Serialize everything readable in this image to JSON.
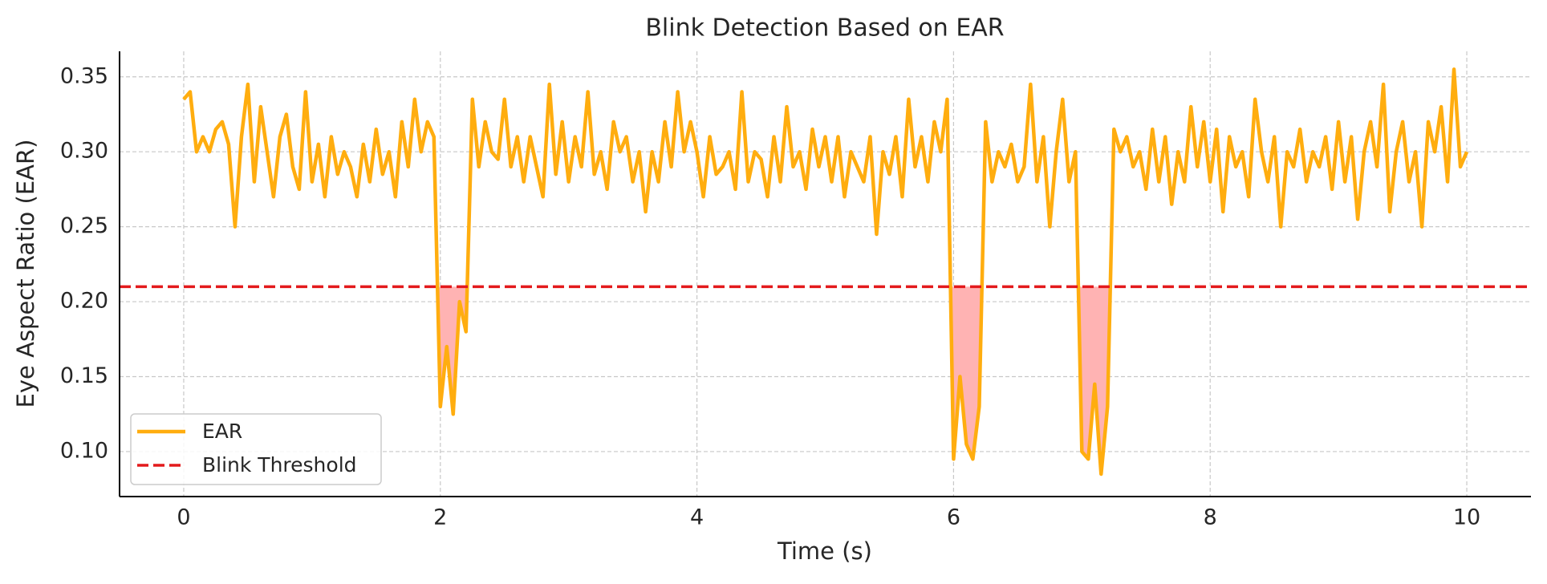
{
  "chart_data": {
    "type": "line",
    "title": "Blink Detection Based on EAR",
    "x_label": "Time (s)",
    "y_label": "Eye Aspect Ratio (EAR)",
    "x": [
      0,
      0.05,
      0.1,
      0.15,
      0.2,
      0.25,
      0.3,
      0.35,
      0.4,
      0.45,
      0.5,
      0.55,
      0.6,
      0.65,
      0.7,
      0.75,
      0.8,
      0.85,
      0.9,
      0.95,
      1,
      1.05,
      1.1,
      1.15,
      1.2,
      1.25,
      1.3,
      1.35,
      1.4,
      1.45,
      1.5,
      1.55,
      1.6,
      1.65,
      1.7,
      1.75,
      1.8,
      1.85,
      1.9,
      1.95,
      2,
      2.05,
      2.1,
      2.15,
      2.2,
      2.25,
      2.3,
      2.35,
      2.4,
      2.45,
      2.5,
      2.55,
      2.6,
      2.65,
      2.7,
      2.75,
      2.8,
      2.85,
      2.9,
      2.95,
      3,
      3.05,
      3.1,
      3.15,
      3.2,
      3.25,
      3.3,
      3.35,
      3.4,
      3.45,
      3.5,
      3.55,
      3.6,
      3.65,
      3.7,
      3.75,
      3.8,
      3.85,
      3.9,
      3.95,
      4,
      4.05,
      4.1,
      4.15,
      4.2,
      4.25,
      4.3,
      4.35,
      4.4,
      4.45,
      4.5,
      4.55,
      4.6,
      4.65,
      4.7,
      4.75,
      4.8,
      4.85,
      4.9,
      4.95,
      5,
      5.05,
      5.1,
      5.15,
      5.2,
      5.25,
      5.3,
      5.35,
      5.4,
      5.45,
      5.5,
      5.55,
      5.6,
      5.65,
      5.7,
      5.75,
      5.8,
      5.85,
      5.9,
      5.95,
      6,
      6.05,
      6.1,
      6.15,
      6.2,
      6.25,
      6.3,
      6.35,
      6.4,
      6.45,
      6.5,
      6.55,
      6.6,
      6.65,
      6.7,
      6.75,
      6.8,
      6.85,
      6.9,
      6.95,
      7,
      7.05,
      7.1,
      7.15,
      7.2,
      7.25,
      7.3,
      7.35,
      7.4,
      7.45,
      7.5,
      7.55,
      7.6,
      7.65,
      7.7,
      7.75,
      7.8,
      7.85,
      7.9,
      7.95,
      8,
      8.05,
      8.1,
      8.15,
      8.2,
      8.25,
      8.3,
      8.35,
      8.4,
      8.45,
      8.5,
      8.55,
      8.6,
      8.65,
      8.7,
      8.75,
      8.8,
      8.85,
      8.9,
      8.95,
      9,
      9.05,
      9.1,
      9.15,
      9.2,
      9.25,
      9.3,
      9.35,
      9.4,
      9.45,
      9.5,
      9.55,
      9.6,
      9.65,
      9.7,
      9.75,
      9.8,
      9.85,
      9.9,
      9.95,
      10
    ],
    "series": [
      {
        "name": "EAR",
        "color": "#ffad0f",
        "values": [
          0.335,
          0.34,
          0.3,
          0.31,
          0.3,
          0.315,
          0.32,
          0.305,
          0.25,
          0.31,
          0.345,
          0.28,
          0.33,
          0.3,
          0.27,
          0.31,
          0.325,
          0.29,
          0.275,
          0.34,
          0.28,
          0.305,
          0.27,
          0.31,
          0.285,
          0.3,
          0.29,
          0.27,
          0.305,
          0.28,
          0.315,
          0.285,
          0.3,
          0.27,
          0.32,
          0.29,
          0.335,
          0.3,
          0.32,
          0.31,
          0.13,
          0.17,
          0.125,
          0.2,
          0.18,
          0.335,
          0.29,
          0.32,
          0.3,
          0.295,
          0.335,
          0.29,
          0.31,
          0.28,
          0.31,
          0.29,
          0.27,
          0.345,
          0.285,
          0.32,
          0.28,
          0.31,
          0.29,
          0.34,
          0.285,
          0.3,
          0.275,
          0.32,
          0.3,
          0.31,
          0.28,
          0.3,
          0.26,
          0.3,
          0.28,
          0.32,
          0.29,
          0.34,
          0.3,
          0.32,
          0.3,
          0.27,
          0.31,
          0.285,
          0.29,
          0.3,
          0.275,
          0.34,
          0.28,
          0.3,
          0.295,
          0.27,
          0.31,
          0.28,
          0.33,
          0.29,
          0.3,
          0.275,
          0.315,
          0.29,
          0.31,
          0.28,
          0.31,
          0.27,
          0.3,
          0.29,
          0.28,
          0.31,
          0.245,
          0.3,
          0.285,
          0.31,
          0.27,
          0.335,
          0.29,
          0.31,
          0.28,
          0.32,
          0.3,
          0.335,
          0.095,
          0.15,
          0.105,
          0.095,
          0.13,
          0.32,
          0.28,
          0.3,
          0.29,
          0.305,
          0.28,
          0.29,
          0.345,
          0.28,
          0.31,
          0.25,
          0.3,
          0.335,
          0.28,
          0.3,
          0.1,
          0.095,
          0.145,
          0.085,
          0.13,
          0.315,
          0.3,
          0.31,
          0.29,
          0.3,
          0.275,
          0.315,
          0.28,
          0.31,
          0.265,
          0.3,
          0.28,
          0.33,
          0.29,
          0.32,
          0.28,
          0.315,
          0.26,
          0.31,
          0.29,
          0.3,
          0.27,
          0.335,
          0.3,
          0.28,
          0.31,
          0.25,
          0.3,
          0.29,
          0.315,
          0.28,
          0.3,
          0.29,
          0.31,
          0.275,
          0.32,
          0.28,
          0.31,
          0.255,
          0.3,
          0.32,
          0.29,
          0.345,
          0.26,
          0.3,
          0.32,
          0.28,
          0.3,
          0.25,
          0.32,
          0.3,
          0.33,
          0.28,
          0.355,
          0.29,
          0.3
        ]
      }
    ],
    "threshold": {
      "name": "Blink Threshold",
      "value": 0.21,
      "color": "#e31a1c"
    },
    "fill_below_threshold": true,
    "fill_color": "#ffb3b3",
    "xlim": [
      -0.5,
      10.5
    ],
    "ylim": [
      0.07,
      0.367
    ],
    "xticks": [
      0,
      2,
      4,
      6,
      8,
      10
    ],
    "yticks": [
      {
        "value": 0.1,
        "label": "0.10"
      },
      {
        "value": 0.15,
        "label": "0.15"
      },
      {
        "value": 0.2,
        "label": "0.20"
      },
      {
        "value": 0.25,
        "label": "0.25"
      },
      {
        "value": 0.3,
        "label": "0.30"
      },
      {
        "value": 0.35,
        "label": "0.35"
      }
    ],
    "grid": true,
    "legend": "lower left"
  }
}
